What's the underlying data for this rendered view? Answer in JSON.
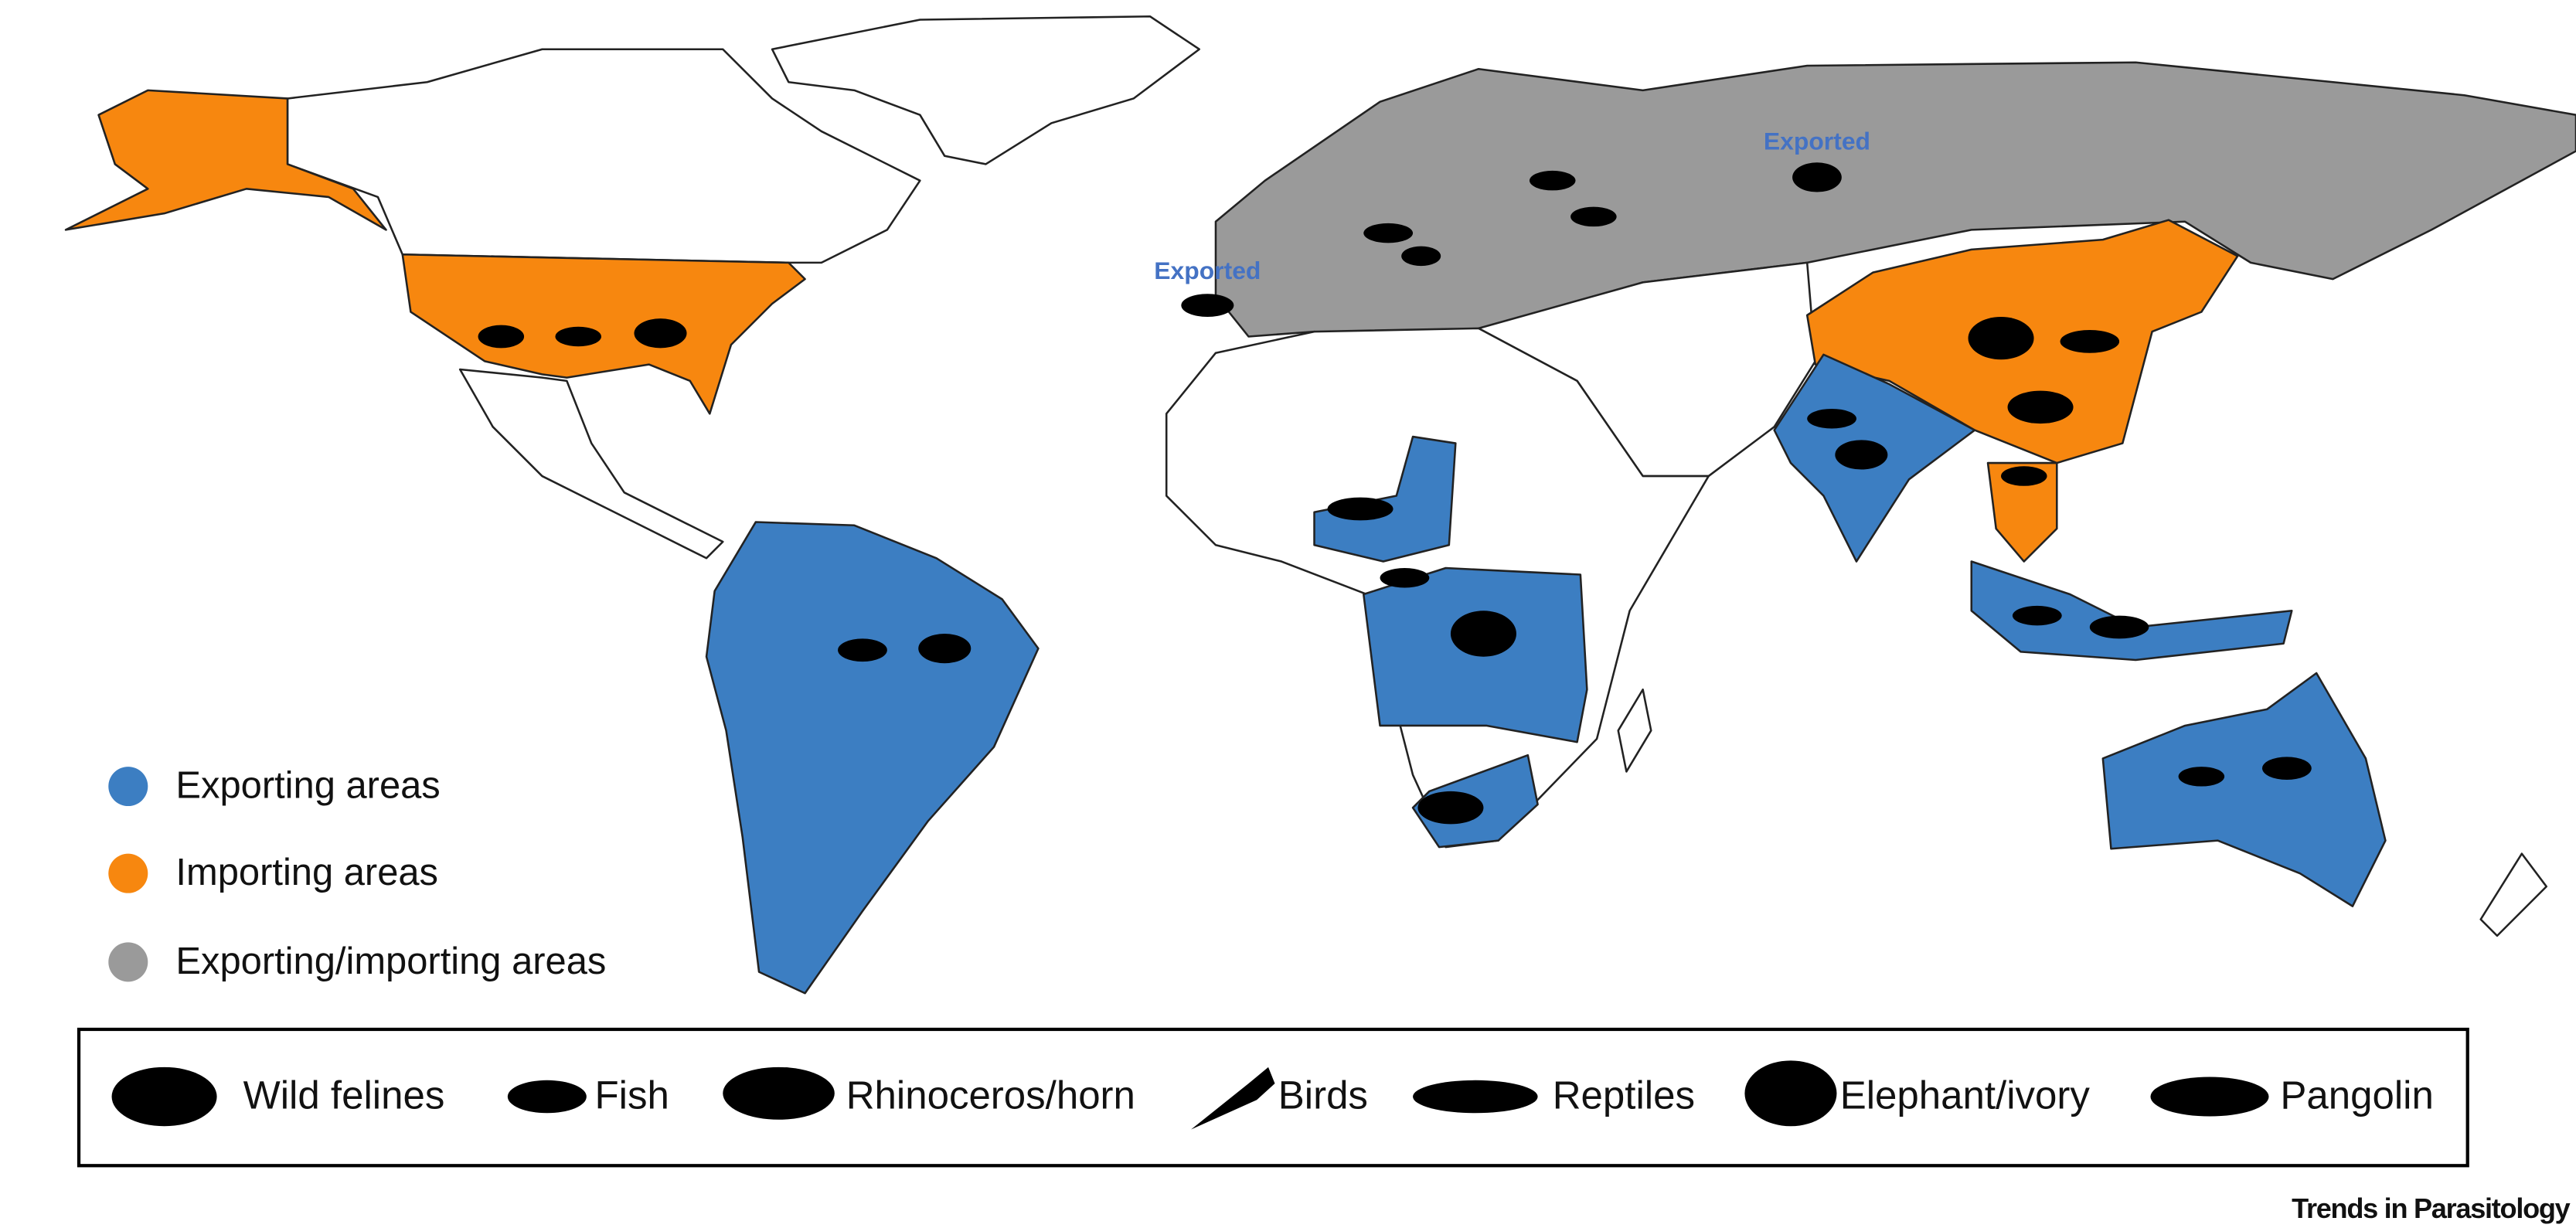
{
  "legend": {
    "areas": [
      {
        "label": "Exporting areas",
        "color": "#3c7ec2"
      },
      {
        "label": "Importing areas",
        "color": "#f7870f"
      },
      {
        "label": "Exporting/importing areas",
        "color": "#9a9a9a"
      }
    ]
  },
  "animals": [
    "Wild felines",
    "Fish",
    "Rhinoceros/horn",
    "Birds",
    "Reptiles",
    "Elephant/ivory",
    "Pangolin"
  ],
  "annotations": [
    "Exported",
    "Exported"
  ],
  "footer": "Trends in Parasitology"
}
